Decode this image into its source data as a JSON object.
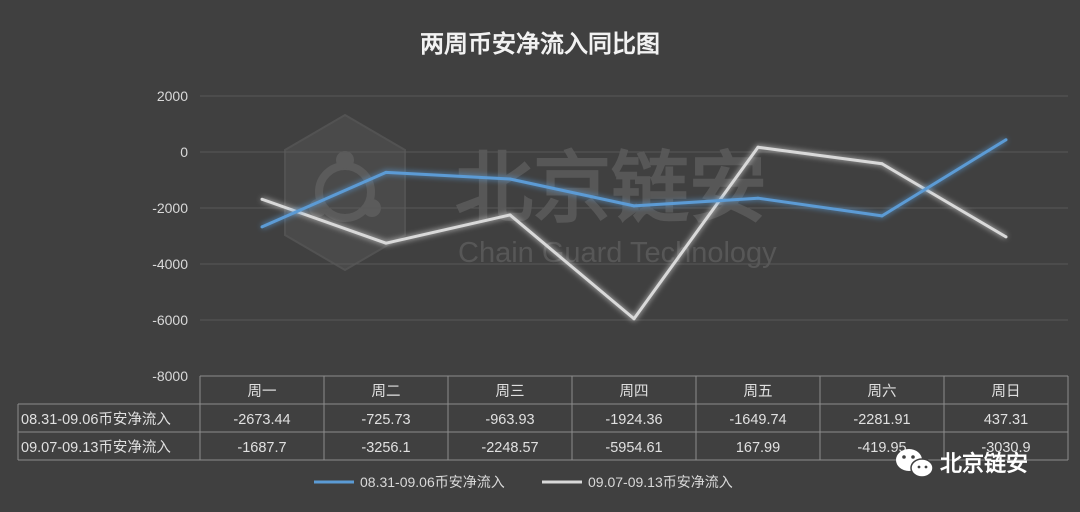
{
  "chart_data": {
    "type": "line",
    "title": "两周币安净流入同比图",
    "categories": [
      "周一",
      "周二",
      "周三",
      "周四",
      "周五",
      "周六",
      "周日"
    ],
    "ylim": [
      -8000,
      2000
    ],
    "yticks": [
      2000,
      0,
      -2000,
      -4000,
      -6000,
      -8000
    ],
    "grid": true,
    "legend_position": "bottom",
    "series": [
      {
        "name": "08.31-09.06币安净流入",
        "color": "#5b9bd5",
        "values": [
          -2673.44,
          -725.73,
          -963.93,
          -1924.36,
          -1649.74,
          -2281.91,
          437.31
        ],
        "labels": [
          "-2673.44",
          "-725.73",
          "-963.93",
          "-1924.36",
          "-1649.74",
          "-2281.91",
          "437.31"
        ]
      },
      {
        "name": "09.07-09.13币安净流入",
        "color": "#d9d9d9",
        "values": [
          -1687.7,
          -3256.1,
          -2248.57,
          -5954.61,
          167.99,
          -419.95,
          -3030.9
        ],
        "labels": [
          "-1687.7",
          "-3256.1",
          "-2248.57",
          "-5954.61",
          "167.99",
          "-419.95",
          "-3030.9"
        ]
      }
    ]
  },
  "watermark": {
    "name": "北京链安",
    "subtitle": "Chain Guard Technology"
  },
  "brand": {
    "icon": "wechat-icon",
    "text": "北京链安"
  }
}
